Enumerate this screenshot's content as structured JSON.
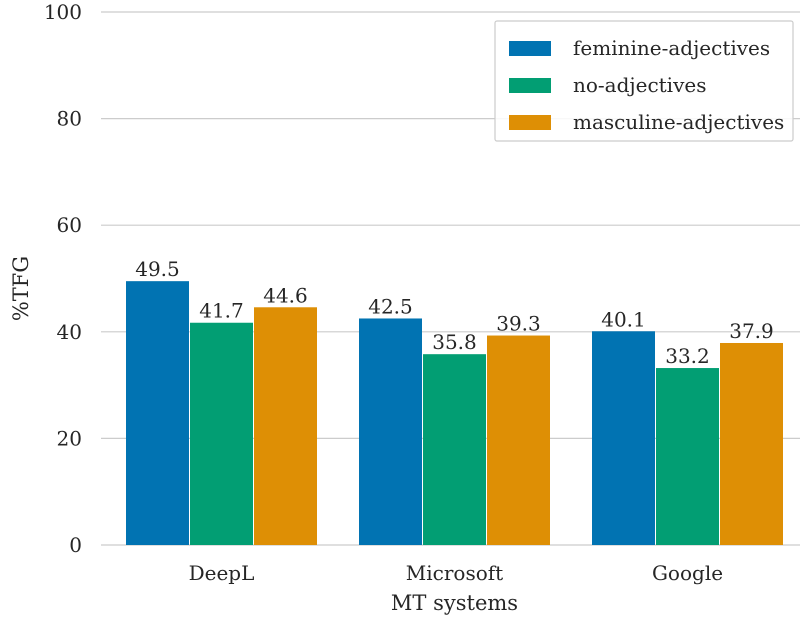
{
  "chart_data": {
    "type": "bar",
    "title": "",
    "xlabel": "MT systems",
    "ylabel": "%TFG",
    "categories": [
      "DeepL",
      "Microsoft",
      "Google"
    ],
    "series": [
      {
        "name": "feminine-adjectives",
        "color": "#0173b2",
        "values": [
          49.5,
          42.5,
          40.1
        ]
      },
      {
        "name": "no-adjectives",
        "color": "#029e73",
        "values": [
          41.7,
          35.8,
          33.2
        ]
      },
      {
        "name": "masculine-adjectives",
        "color": "#de8f05",
        "values": [
          44.6,
          39.3,
          37.9
        ]
      }
    ],
    "ylim": [
      0,
      100
    ],
    "yticks": [
      0,
      20,
      40,
      60,
      80,
      100
    ],
    "grid": "horizontal",
    "legend_position": "top-right",
    "data_labels": true
  }
}
